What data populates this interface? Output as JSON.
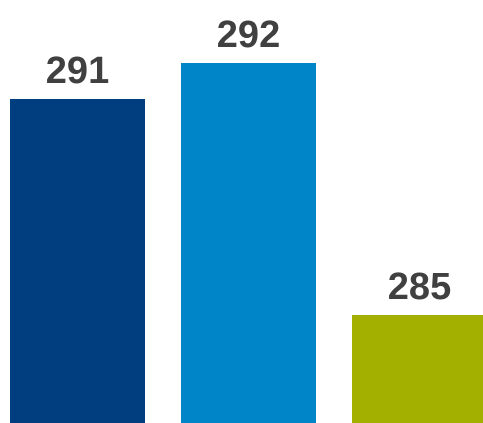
{
  "chart_data": {
    "type": "bar",
    "title": "",
    "xlabel": "",
    "ylabel": "",
    "categories": [],
    "values": [
      291,
      292,
      285
    ],
    "colors": [
      "#003E80",
      "#0086C8",
      "#A3B000"
    ],
    "labels": [
      "291",
      "292",
      "285"
    ]
  }
}
